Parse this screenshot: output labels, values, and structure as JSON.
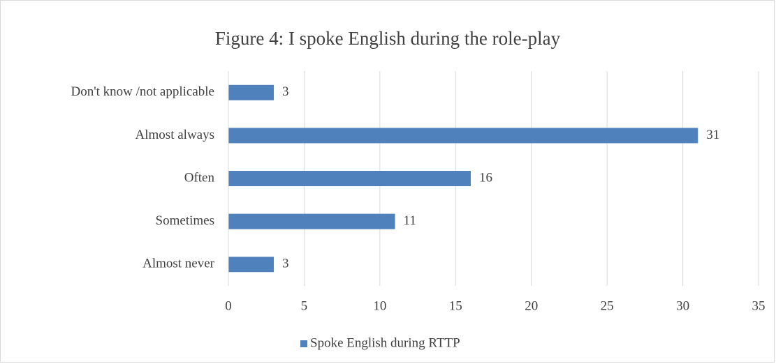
{
  "chart_data": {
    "type": "bar",
    "orientation": "horizontal",
    "title": "Figure 4: I spoke English during the role-play",
    "categories": [
      "Don't know /not applicable",
      "Almost always",
      "Often",
      "Sometimes",
      "Almost never"
    ],
    "series": [
      {
        "name": "Spoke English during RTTP",
        "color": "#4f81bd",
        "values": [
          3,
          31,
          16,
          11,
          3
        ]
      }
    ],
    "xlim": [
      0,
      35
    ],
    "xticks": [
      0,
      5,
      10,
      15,
      20,
      25,
      30,
      35
    ],
    "grid": true,
    "legend": "bottom"
  }
}
